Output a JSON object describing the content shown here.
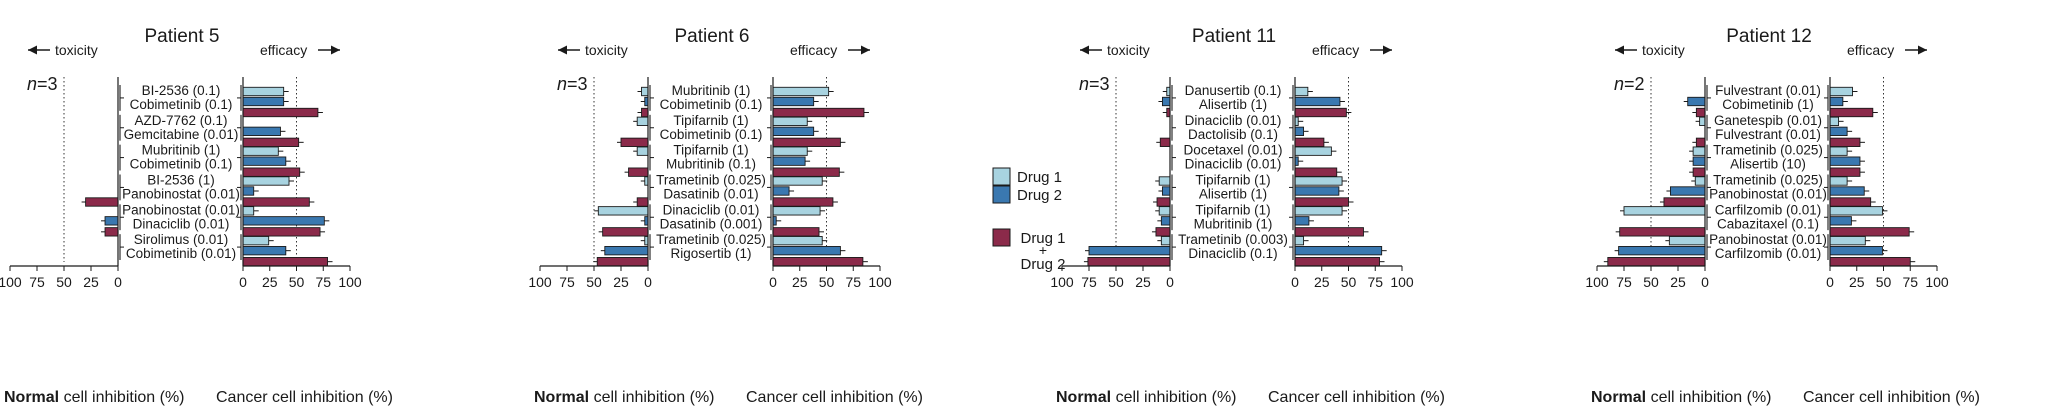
{
  "chart_data": {
    "type": "bar",
    "orientation": "horizontal",
    "legend": {
      "position": "center-right",
      "entries": [
        {
          "key": "d1",
          "label": "Drug 1",
          "color": "#a8d3e0"
        },
        {
          "key": "d2",
          "label": "Drug 2",
          "color": "#3a78b0"
        },
        {
          "key": "combo",
          "label_lines": [
            "Drug 1",
            "+",
            "Drug 2"
          ],
          "color": "#8b2a4a"
        }
      ]
    },
    "axis_text": {
      "toxicity": "toxicity",
      "efficacy": "efficacy",
      "normal_bold": "Normal",
      "normal_rest": " cell inhibition (%)",
      "cancer": "Cancer cell inhibition (%)",
      "n_prefix": "n",
      "left_ticks": [
        "100",
        "75",
        "50",
        "25",
        "0"
      ],
      "right_ticks": [
        "0",
        "25",
        "50",
        "75",
        "100"
      ],
      "xlim": [
        0,
        100
      ],
      "reference_line": 50
    },
    "panels": [
      {
        "title": "Patient 5",
        "n": "=3",
        "pairs": [
          {
            "drug1": "BI-2536 (0.1)",
            "drug2": "Cobimetinib (0.1)",
            "cancer": {
              "d1": 38,
              "d2": 38,
              "combo": 70
            },
            "normal": {
              "d1": 0,
              "d2": 0,
              "combo": 0
            }
          },
          {
            "drug1": "AZD-7762 (0.1)",
            "drug2": "Gemcitabine (0.01)",
            "cancer": {
              "d1": 0,
              "d2": 35,
              "combo": 52
            },
            "normal": {
              "d1": 0,
              "d2": 0,
              "combo": 0
            }
          },
          {
            "drug1": "Mubritinib (1)",
            "drug2": "Cobimetinib (0.1)",
            "cancer": {
              "d1": 33,
              "d2": 40,
              "combo": 53
            },
            "normal": {
              "d1": 0,
              "d2": 0,
              "combo": 0
            }
          },
          {
            "drug1": "BI-2536 (1)",
            "drug2": "Panobinostat (0.01)",
            "cancer": {
              "d1": 43,
              "d2": 10,
              "combo": 62
            },
            "normal": {
              "d1": 0,
              "d2": 0,
              "combo": 30
            }
          },
          {
            "drug1": "Panobinostat (0.01)",
            "drug2": "Dinaciclib (0.01)",
            "cancer": {
              "d1": 10,
              "d2": 76,
              "combo": 72
            },
            "normal": {
              "d1": 0,
              "d2": 12,
              "combo": 12
            }
          },
          {
            "drug1": "Sirolimus (0.01)",
            "drug2": "Cobimetinib (0.01)",
            "cancer": {
              "d1": 24,
              "d2": 40,
              "combo": 79
            },
            "normal": {
              "d1": 0,
              "d2": 0,
              "combo": 0
            }
          }
        ]
      },
      {
        "title": "Patient 6",
        "n": "=3",
        "pairs": [
          {
            "drug1": "Mubritinib (1)",
            "drug2": "Cobimetinib (0.1)",
            "cancer": {
              "d1": 52,
              "d2": 38,
              "combo": 85
            },
            "normal": {
              "d1": 6,
              "d2": 3,
              "combo": 6
            }
          },
          {
            "drug1": "Tipifarnib (1)",
            "drug2": "Cobimetinib (0.1)",
            "cancer": {
              "d1": 32,
              "d2": 38,
              "combo": 63
            },
            "normal": {
              "d1": 10,
              "d2": 0,
              "combo": 25
            }
          },
          {
            "drug1": "Tipifarnib (1)",
            "drug2": "Mubritinib (0.1)",
            "cancer": {
              "d1": 32,
              "d2": 30,
              "combo": 62
            },
            "normal": {
              "d1": 10,
              "d2": 0,
              "combo": 18
            }
          },
          {
            "drug1": "Trametinib (0.025)",
            "drug2": "Dasatinib (0.01)",
            "cancer": {
              "d1": 46,
              "d2": 15,
              "combo": 56
            },
            "normal": {
              "d1": 3,
              "d2": 0,
              "combo": 10
            }
          },
          {
            "drug1": "Dinaciclib (0.01)",
            "drug2": "Dasatinib (0.001)",
            "cancer": {
              "d1": 44,
              "d2": 3,
              "combo": 43
            },
            "normal": {
              "d1": 46,
              "d2": 3,
              "combo": 42
            }
          },
          {
            "drug1": "Trametinib (0.025)",
            "drug2": "Rigosertib (1)",
            "cancer": {
              "d1": 46,
              "d2": 63,
              "combo": 84
            },
            "normal": {
              "d1": 3,
              "d2": 40,
              "combo": 47
            }
          }
        ]
      },
      {
        "title": "Patient 11",
        "n": "=3",
        "pairs": [
          {
            "drug1": "Danusertib (0.1)",
            "drug2": "Alisertib (1)",
            "cancer": {
              "d1": 12,
              "d2": 42,
              "combo": 48
            },
            "normal": {
              "d1": 3,
              "d2": 7,
              "combo": 3
            }
          },
          {
            "drug1": "Dinaciclib (0.01)",
            "drug2": "Dactolisib (0.1)",
            "cancer": {
              "d1": 3,
              "d2": 8,
              "combo": 27
            },
            "normal": {
              "d1": 0,
              "d2": 0,
              "combo": 9
            }
          },
          {
            "drug1": "Docetaxel (0.01)",
            "drug2": "Dinaciclib (0.01)",
            "cancer": {
              "d1": 34,
              "d2": 3,
              "combo": 39
            },
            "normal": {
              "d1": 0,
              "d2": 0,
              "combo": 0
            }
          },
          {
            "drug1": "Tipifarnib (1)",
            "drug2": "Alisertib (1)",
            "cancer": {
              "d1": 44,
              "d2": 41,
              "combo": 50
            },
            "normal": {
              "d1": 10,
              "d2": 7,
              "combo": 12
            }
          },
          {
            "drug1": "Tipifarnib (1)",
            "drug2": "Mubritinib (1)",
            "cancer": {
              "d1": 44,
              "d2": 13,
              "combo": 64
            },
            "normal": {
              "d1": 10,
              "d2": 8,
              "combo": 13
            }
          },
          {
            "drug1": "Trametinib (0.003)",
            "drug2": "Dinaciclib (0.1)",
            "cancer": {
              "d1": 8,
              "d2": 81,
              "combo": 79
            },
            "normal": {
              "d1": 8,
              "d2": 75,
              "combo": 76
            }
          }
        ]
      },
      {
        "title": "Patient 12",
        "n": "=2",
        "pairs": [
          {
            "drug1": "Fulvestrant (0.01)",
            "drug2": "Cobimetinib (1)",
            "cancer": {
              "d1": 21,
              "d2": 12,
              "combo": 40
            },
            "normal": {
              "d1": 0,
              "d2": 16,
              "combo": 8
            }
          },
          {
            "drug1": "Ganetespib (0.01)",
            "drug2": "Fulvestrant (0.01)",
            "cancer": {
              "d1": 8,
              "d2": 16,
              "combo": 28
            },
            "normal": {
              "d1": 5,
              "d2": 0,
              "combo": 8
            }
          },
          {
            "drug1": "Trametinib (0.025)",
            "drug2": "Alisertib (10)",
            "cancer": {
              "d1": 16,
              "d2": 28,
              "combo": 28
            },
            "normal": {
              "d1": 11,
              "d2": 11,
              "combo": 11
            }
          },
          {
            "drug1": "Trametinib (0.025)",
            "drug2": "Panobinostat (0.01)",
            "cancer": {
              "d1": 16,
              "d2": 32,
              "combo": 38
            },
            "normal": {
              "d1": 9,
              "d2": 32,
              "combo": 38
            }
          },
          {
            "drug1": "Carfilzomib (0.01)",
            "drug2": "Cabazitaxel (0.1)",
            "cancer": {
              "d1": 49,
              "d2": 20,
              "combo": 74
            },
            "normal": {
              "d1": 75,
              "d2": 0,
              "combo": 79
            }
          },
          {
            "drug1": "Panobinostat (0.01)",
            "drug2": "Carfilzomib (0.01)",
            "cancer": {
              "d1": 33,
              "d2": 49,
              "combo": 75
            },
            "normal": {
              "d1": 33,
              "d2": 80,
              "combo": 90
            }
          }
        ]
      }
    ]
  }
}
